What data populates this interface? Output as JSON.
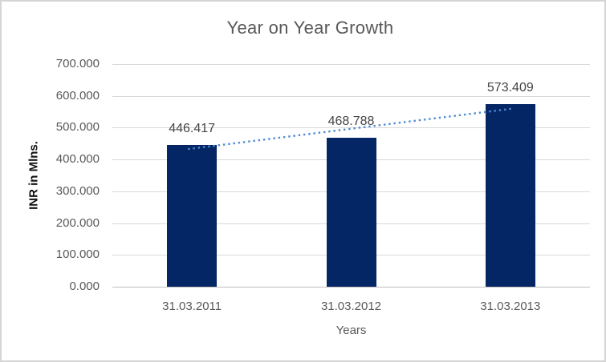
{
  "chart_data": {
    "type": "bar",
    "title": "Year on Year Growth",
    "xlabel": "Years",
    "ylabel": "INR in Mlns.",
    "categories": [
      "31.03.2011",
      "31.03.2012",
      "31.03.2013"
    ],
    "series": [
      {
        "name": "INR in Mlns.",
        "values": [
          446.417,
          468.788,
          573.409
        ]
      }
    ],
    "values": [
      446.417,
      468.788,
      573.409
    ],
    "data_labels": [
      "446.417",
      "468.788",
      "573.409"
    ],
    "y_ticks": [
      {
        "value": 0,
        "label": "0.000"
      },
      {
        "value": 100,
        "label": "100.000"
      },
      {
        "value": 200,
        "label": "200.000"
      },
      {
        "value": 300,
        "label": "300.000"
      },
      {
        "value": 400,
        "label": "400.000"
      },
      {
        "value": 500,
        "label": "500.000"
      },
      {
        "value": 600,
        "label": "600.000"
      },
      {
        "value": 700,
        "label": "700.000"
      }
    ],
    "ylim": [
      0,
      700
    ],
    "grid": true,
    "legend": "none",
    "trendline": {
      "type": "linear",
      "style": "dotted"
    },
    "colors": {
      "bar": "#052665",
      "trendline": "#4E8AD4",
      "gridline": "#D9D9D9",
      "axis_line": "#BFBFBF",
      "tick_text": "#595959",
      "title_text": "#595959",
      "data_label_text": "#444444",
      "axis_title_text": "#111111",
      "border": "#D5D5D5",
      "background": "#FFFFFF"
    }
  }
}
